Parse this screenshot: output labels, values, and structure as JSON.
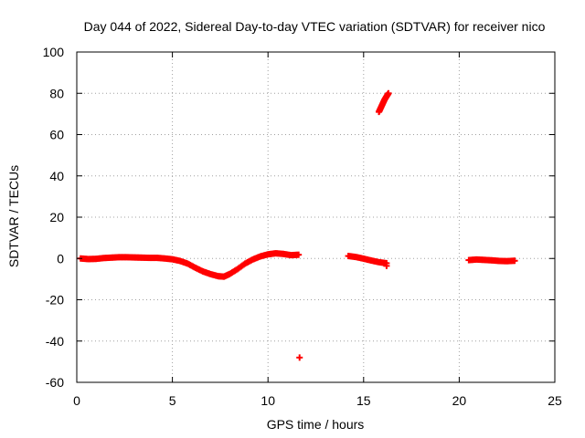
{
  "chart_data": {
    "type": "scatter",
    "title": "Day 044 of 2022, Sidereal Day-to-day VTEC variation (SDTVAR) for receiver nico",
    "xlabel": "GPS time / hours",
    "ylabel": "SDTVAR / TECUs",
    "xlim": [
      0,
      25
    ],
    "ylim": [
      -60,
      100
    ],
    "xticks": [
      0,
      5,
      10,
      15,
      20,
      25
    ],
    "yticks": [
      -60,
      -40,
      -20,
      0,
      20,
      40,
      60,
      80,
      100
    ],
    "xtick_labels": [
      "0",
      "5",
      "10",
      "15",
      "20",
      "25"
    ],
    "ytick_labels": [
      "-60",
      "-40",
      "-20",
      "0",
      "20",
      "40",
      "60",
      "80",
      "100"
    ],
    "grid": true,
    "marker": "plus",
    "color": "#ff0000",
    "series": [
      {
        "name": "SDTVAR",
        "points": [
          [
            0.2,
            0.0
          ],
          [
            0.6,
            -0.3
          ],
          [
            1.0,
            -0.2
          ],
          [
            1.4,
            0.2
          ],
          [
            1.8,
            0.4
          ],
          [
            2.2,
            0.6
          ],
          [
            2.6,
            0.6
          ],
          [
            3.0,
            0.5
          ],
          [
            3.4,
            0.4
          ],
          [
            3.8,
            0.3
          ],
          [
            4.2,
            0.3
          ],
          [
            4.6,
            0.0
          ],
          [
            5.0,
            -0.4
          ],
          [
            5.4,
            -1.2
          ],
          [
            5.8,
            -2.5
          ],
          [
            6.2,
            -4.5
          ],
          [
            6.6,
            -6.3
          ],
          [
            7.0,
            -7.6
          ],
          [
            7.4,
            -8.6
          ],
          [
            7.7,
            -8.8
          ],
          [
            8.0,
            -7.5
          ],
          [
            8.4,
            -5.2
          ],
          [
            8.8,
            -2.5
          ],
          [
            9.2,
            -0.5
          ],
          [
            9.6,
            1.0
          ],
          [
            10.0,
            2.0
          ],
          [
            10.4,
            2.5
          ],
          [
            10.8,
            2.2
          ],
          [
            11.2,
            1.6
          ],
          [
            11.6,
            1.8
          ],
          [
            11.65,
            -48.0
          ],
          [
            14.2,
            1.2
          ],
          [
            14.6,
            0.7
          ],
          [
            15.0,
            -0.1
          ],
          [
            15.4,
            -1.0
          ],
          [
            15.8,
            -1.8
          ],
          [
            16.2,
            -2.3
          ],
          [
            16.2,
            -3.6
          ],
          [
            15.8,
            71.0
          ],
          [
            15.9,
            73.0
          ],
          [
            16.0,
            75.0
          ],
          [
            16.1,
            77.0
          ],
          [
            16.2,
            78.5
          ],
          [
            16.3,
            80.0
          ],
          [
            20.5,
            -0.8
          ],
          [
            20.9,
            -0.5
          ],
          [
            21.3,
            -0.7
          ],
          [
            21.7,
            -0.9
          ],
          [
            22.1,
            -1.2
          ],
          [
            22.5,
            -1.3
          ],
          [
            22.9,
            -1.1
          ]
        ]
      }
    ]
  }
}
